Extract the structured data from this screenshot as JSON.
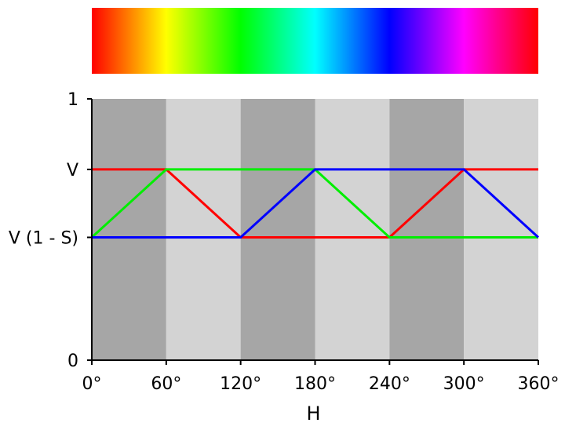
{
  "chart_data": {
    "type": "line",
    "xlabel": "H",
    "ylabel": "",
    "xlim": [
      0,
      360
    ],
    "ylim": [
      0,
      1
    ],
    "x_ticks": [
      {
        "value": 0,
        "label": "0°"
      },
      {
        "value": 60,
        "label": "60°"
      },
      {
        "value": 120,
        "label": "120°"
      },
      {
        "value": 180,
        "label": "180°"
      },
      {
        "value": 240,
        "label": "240°"
      },
      {
        "value": 300,
        "label": "300°"
      },
      {
        "value": 360,
        "label": "360°"
      }
    ],
    "y_ticks": [
      {
        "value": 0,
        "label": "0"
      },
      {
        "value": 0.47,
        "label": "V (1 - S)"
      },
      {
        "value": 0.73,
        "label": "V"
      },
      {
        "value": 1,
        "label": "1"
      }
    ],
    "v_max": 0.73,
    "v_min": 0.47,
    "series": [
      {
        "color": "#ff0000",
        "x": [
          0,
          60,
          120,
          240,
          300,
          360
        ],
        "y": [
          0.73,
          0.73,
          0.47,
          0.47,
          0.73,
          0.73
        ]
      },
      {
        "color": "#00ee00",
        "x": [
          0,
          60,
          180,
          240,
          360
        ],
        "y": [
          0.47,
          0.73,
          0.73,
          0.47,
          0.47
        ]
      },
      {
        "color": "#0000ff",
        "x": [
          0,
          120,
          180,
          300,
          360
        ],
        "y": [
          0.47,
          0.47,
          0.73,
          0.73,
          0.47
        ]
      }
    ],
    "background_bands": [
      {
        "from": 0,
        "to": 60,
        "color": "#a6a6a6"
      },
      {
        "from": 60,
        "to": 120,
        "color": "#d3d3d3"
      },
      {
        "from": 120,
        "to": 180,
        "color": "#a6a6a6"
      },
      {
        "from": 180,
        "to": 240,
        "color": "#d3d3d3"
      },
      {
        "from": 240,
        "to": 300,
        "color": "#a6a6a6"
      },
      {
        "from": 300,
        "to": 360,
        "color": "#d3d3d3"
      }
    ],
    "hue_spectrum": {
      "stops": [
        "#ff0000",
        "#ffff00",
        "#00ff00",
        "#00ffff",
        "#0000ff",
        "#ff00ff",
        "#ff0000"
      ]
    },
    "grid": false,
    "legend": "none"
  }
}
